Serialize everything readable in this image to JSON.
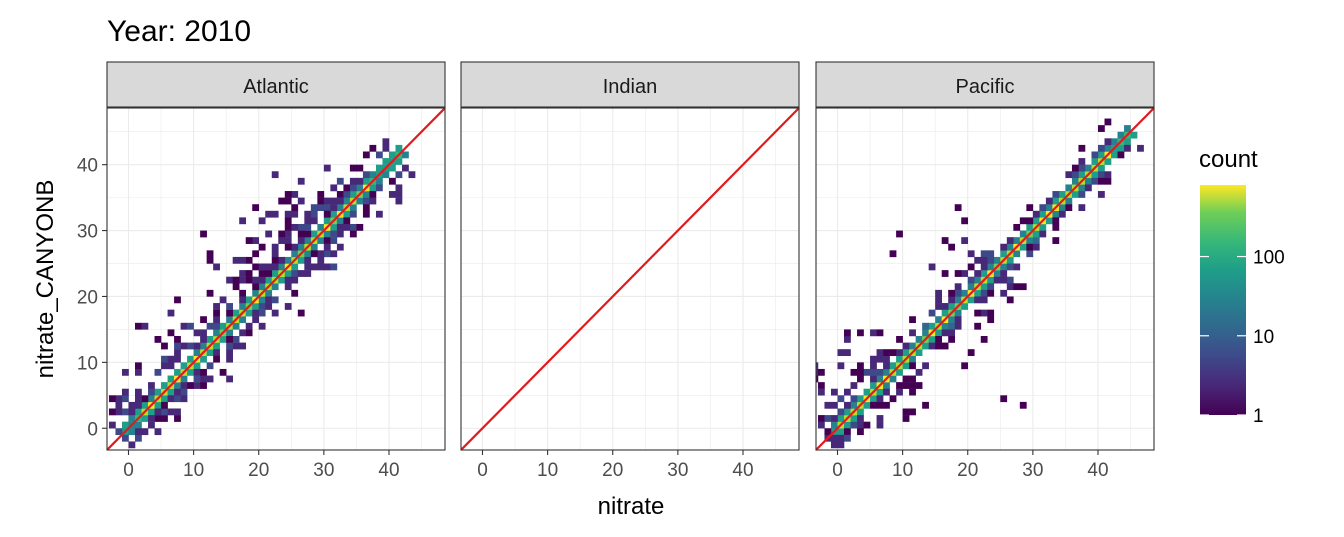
{
  "chart_data": {
    "type": "heatmap",
    "title": "Year: 2010",
    "xlabel": "nitrate",
    "ylabel": "nitrate_CANYONB",
    "xlim": [
      -3.3,
      48.6
    ],
    "ylim": [
      -3.3,
      48.6
    ],
    "x_ticks": [
      0,
      10,
      20,
      30,
      40
    ],
    "y_ticks": [
      0,
      10,
      20,
      30,
      40
    ],
    "grid": true,
    "reference_line": {
      "slope": 1,
      "intercept": 0,
      "color": "#e31a1c"
    },
    "legend": {
      "title": "count",
      "position": "right",
      "scale": "log10",
      "range": [
        1,
        800
      ],
      "ticks": [
        1,
        10,
        100
      ],
      "tick_labels": [
        "1",
        "10",
        "100"
      ],
      "colormap": "viridis"
    },
    "panels": [
      {
        "name": "Atlantic",
        "diag_range": [
          -1,
          41
        ],
        "hot_range": [
          2,
          36
        ],
        "spread": 3.0,
        "clusters": [
          [
            26,
            29,
            5,
            4,
            60
          ],
          [
            10,
            12,
            3,
            3,
            35
          ],
          [
            18,
            22,
            3,
            3,
            25
          ],
          [
            34,
            34,
            2.5,
            2.5,
            25
          ],
          [
            1,
            2,
            2,
            2,
            20
          ]
        ],
        "outliers": [
          [
            16,
            22.5
          ],
          [
            17,
            23.5
          ],
          [
            23,
            34
          ],
          [
            24,
            35.5
          ],
          [
            21.5,
            24.5
          ],
          [
            26,
            17
          ],
          [
            7.5,
            13.5
          ],
          [
            30,
            26
          ],
          [
            13,
            18
          ],
          [
            9,
            15
          ],
          [
            31,
            32.5
          ],
          [
            25,
            33
          ]
        ]
      },
      {
        "name": "Indian",
        "diag_range": null,
        "clusters": [],
        "outliers": []
      },
      {
        "name": "Pacific",
        "diag_range": [
          -0.5,
          45
        ],
        "hot_range": [
          0,
          42
        ],
        "spread": 1.6,
        "clusters": [
          [
            5,
            7.5,
            4,
            3.5,
            60
          ],
          [
            23,
            23,
            4,
            4,
            40
          ],
          [
            39,
            39,
            2,
            2,
            20
          ],
          [
            0,
            1,
            1.5,
            1.5,
            25
          ]
        ],
        "outliers": [
          [
            9,
            29
          ],
          [
            8.5,
            26
          ],
          [
            13,
            14
          ],
          [
            19,
            9
          ],
          [
            20,
            11
          ],
          [
            27.5,
            21
          ],
          [
            25,
            4.5
          ],
          [
            28,
            3.5
          ],
          [
            15,
            12
          ],
          [
            6,
            0
          ],
          [
            4,
            0
          ],
          [
            16,
            12.5
          ],
          [
            11,
            16.5
          ],
          [
            9.5,
            8
          ],
          [
            2,
            3
          ],
          [
            23.5,
            16
          ],
          [
            26,
            19
          ],
          [
            8,
            4
          ],
          [
            7,
            3
          ],
          [
            10.5,
            1.5
          ],
          [
            12,
            6.5
          ]
        ]
      }
    ]
  }
}
